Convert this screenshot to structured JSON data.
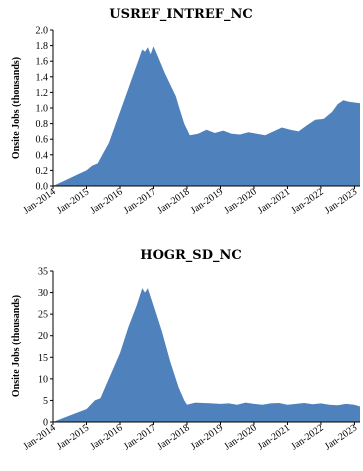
{
  "chart_data": [
    {
      "type": "area",
      "title": "USREF_INTREF_NC",
      "xlabel": "",
      "ylabel": "Onsite Jobs (thousands)",
      "ylim": [
        0.0,
        2.0
      ],
      "yticks": [
        "0.0",
        "0.2",
        "0.4",
        "0.6",
        "0.8",
        "1.0",
        "1.2",
        "1.4",
        "1.6",
        "1.8",
        "2.0"
      ],
      "xticks": [
        "Jan-2014",
        "Jan-2015",
        "Jan-2016",
        "Jan-2017",
        "Jan-2018",
        "Jan-2019",
        "Jan-2020",
        "Jan-2021",
        "Jan-2022",
        "Jan-2023"
      ],
      "grid": false,
      "legend": "none",
      "color": "#4f81bd",
      "x": [
        "2014-01",
        "2014-04",
        "2014-07",
        "2014-10",
        "2015-01",
        "2015-03",
        "2015-05",
        "2015-07",
        "2015-09",
        "2015-11",
        "2016-01",
        "2016-03",
        "2016-05",
        "2016-07",
        "2016-09",
        "2016-10",
        "2016-11",
        "2016-12",
        "2017-01",
        "2017-03",
        "2017-05",
        "2017-07",
        "2017-09",
        "2017-10",
        "2017-12",
        "2018-02",
        "2018-05",
        "2018-08",
        "2018-11",
        "2019-02",
        "2019-05",
        "2019-08",
        "2019-11",
        "2020-02",
        "2020-05",
        "2020-08",
        "2020-11",
        "2021-02",
        "2021-05",
        "2021-08",
        "2021-11",
        "2022-02",
        "2022-05",
        "2022-07",
        "2022-09",
        "2022-11",
        "2023-01",
        "2023-03"
      ],
      "values": [
        0.0,
        0.05,
        0.1,
        0.15,
        0.2,
        0.26,
        0.29,
        0.42,
        0.55,
        0.75,
        0.95,
        1.15,
        1.35,
        1.55,
        1.75,
        1.72,
        1.78,
        1.69,
        1.79,
        1.62,
        1.45,
        1.3,
        1.15,
        1.03,
        0.8,
        0.65,
        0.67,
        0.72,
        0.68,
        0.71,
        0.67,
        0.66,
        0.69,
        0.67,
        0.65,
        0.7,
        0.75,
        0.72,
        0.7,
        0.78,
        0.85,
        0.86,
        0.95,
        1.05,
        1.1,
        1.08,
        1.07,
        1.06
      ]
    },
    {
      "type": "area",
      "title": "HOGR_SD_NC",
      "xlabel": "",
      "ylabel": "Onsite Jobs (thousands)",
      "ylim": [
        0,
        35
      ],
      "yticks": [
        "0",
        "5",
        "10",
        "15",
        "20",
        "25",
        "30",
        "35"
      ],
      "xticks": [
        "Jan-2014",
        "Jan-2015",
        "Jan-2016",
        "Jan-2017",
        "Jan-2018",
        "Jan-2019",
        "Jan-2020",
        "Jan-2021",
        "Jan-2022",
        "Jan-2023"
      ],
      "grid": false,
      "legend": "none",
      "color": "#4f81bd",
      "x": [
        "2014-01",
        "2014-07",
        "2015-01",
        "2015-04",
        "2015-06",
        "2015-09",
        "2016-01",
        "2016-04",
        "2016-07",
        "2016-09",
        "2016-10",
        "2016-11",
        "2017-01",
        "2017-04",
        "2017-07",
        "2017-10",
        "2017-12",
        "2018-01",
        "2018-04",
        "2018-07",
        "2018-10",
        "2019-01",
        "2019-04",
        "2019-07",
        "2019-10",
        "2020-01",
        "2020-04",
        "2020-07",
        "2020-10",
        "2021-01",
        "2021-04",
        "2021-07",
        "2021-10",
        "2022-01",
        "2022-04",
        "2022-07",
        "2022-10",
        "2023-01",
        "2023-03"
      ],
      "values": [
        0.0,
        1.5,
        3.0,
        5.0,
        5.5,
        10.0,
        16.0,
        22.0,
        27.0,
        31.0,
        30.0,
        31.0,
        27.0,
        21.0,
        14.0,
        8.0,
        5.0,
        4.0,
        4.5,
        4.4,
        4.3,
        4.2,
        4.3,
        4.0,
        4.5,
        4.2,
        4.0,
        4.3,
        4.4,
        4.0,
        4.2,
        4.4,
        4.1,
        4.3,
        4.0,
        3.9,
        4.2,
        4.0,
        3.6
      ]
    }
  ]
}
